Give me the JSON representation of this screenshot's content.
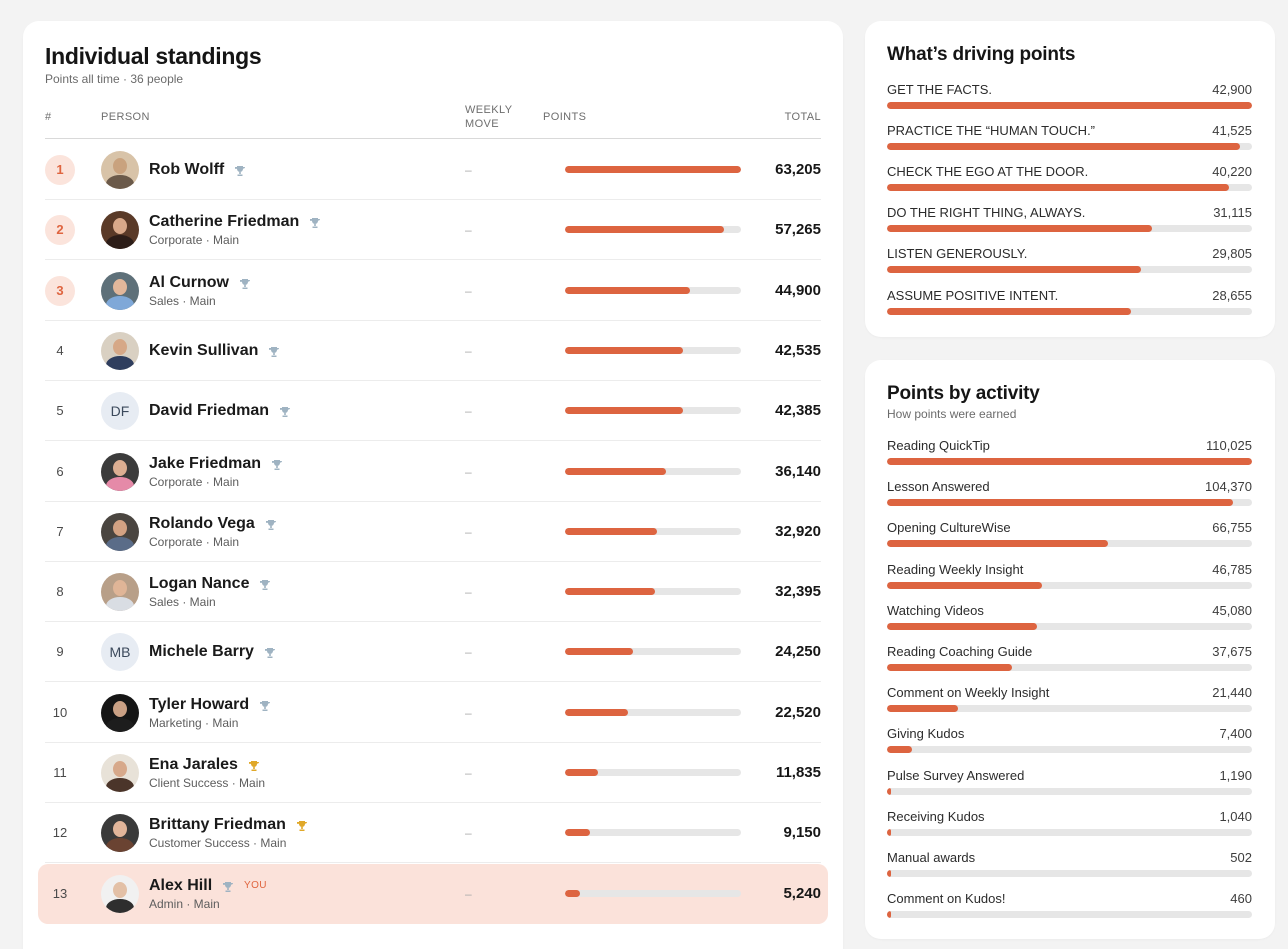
{
  "standings": {
    "title": "Individual standings",
    "subtitle": "Points all time · 36 people",
    "columns": {
      "rank": "#",
      "person": "PERSON",
      "move_line1": "WEEKLY",
      "move_line2": "MOVE",
      "points": "POINTS",
      "total": "TOTAL"
    },
    "max_total": 63205,
    "rows": [
      {
        "rank": "1",
        "name": "Rob Wolff",
        "team": "",
        "move": "–",
        "total": "63,205",
        "value": 63205,
        "trophy": "silver",
        "avatar": "photo",
        "skin": "#c9a27e",
        "shirt": "#6b5a4a",
        "bg": "#d8c3a8"
      },
      {
        "rank": "2",
        "name": "Catherine Friedman",
        "team": "Corporate · Main",
        "move": "–",
        "total": "57,265",
        "value": 57265,
        "trophy": "silver",
        "avatar": "photo",
        "skin": "#d9a98a",
        "shirt": "#2c1d18",
        "bg": "#5a3a28"
      },
      {
        "rank": "3",
        "name": "Al Curnow",
        "team": "Sales · Main",
        "move": "–",
        "total": "44,900",
        "value": 44900,
        "trophy": "silver",
        "avatar": "photo",
        "skin": "#e2b79b",
        "shirt": "#7fa8d8",
        "bg": "#5e7079"
      },
      {
        "rank": "4",
        "name": "Kevin Sullivan",
        "team": "",
        "move": "–",
        "total": "42,535",
        "value": 42535,
        "trophy": "silver",
        "avatar": "photo",
        "skin": "#d6a887",
        "shirt": "#2f3e5e",
        "bg": "#d9d0c2"
      },
      {
        "rank": "5",
        "name": "David Friedman",
        "team": "",
        "move": "–",
        "total": "42,385",
        "value": 42385,
        "trophy": "silver",
        "avatar": "initials",
        "initials": "DF"
      },
      {
        "rank": "6",
        "name": "Jake Friedman",
        "team": "Corporate · Main",
        "move": "–",
        "total": "36,140",
        "value": 36140,
        "trophy": "silver",
        "avatar": "photo",
        "skin": "#dcae92",
        "shirt": "#e58aa8",
        "bg": "#3b3b3b"
      },
      {
        "rank": "7",
        "name": "Rolando Vega",
        "team": "Corporate · Main",
        "move": "–",
        "total": "32,920",
        "value": 32920,
        "trophy": "silver",
        "avatar": "photo",
        "skin": "#d3a283",
        "shirt": "#5a6c88",
        "bg": "#4a4540"
      },
      {
        "rank": "8",
        "name": "Logan Nance",
        "team": "Sales · Main",
        "move": "–",
        "total": "32,395",
        "value": 32395,
        "trophy": "silver",
        "avatar": "photo",
        "skin": "#e0b597",
        "shirt": "#d9dde3",
        "bg": "#b89f88"
      },
      {
        "rank": "9",
        "name": "Michele Barry",
        "team": "",
        "move": "–",
        "total": "24,250",
        "value": 24250,
        "trophy": "silver",
        "avatar": "initials",
        "initials": "MB"
      },
      {
        "rank": "10",
        "name": "Tyler Howard",
        "team": "Marketing · Main",
        "move": "–",
        "total": "22,520",
        "value": 22520,
        "trophy": "silver",
        "avatar": "photo",
        "skin": "#caa084",
        "shirt": "#1d1d1d",
        "bg": "#151515"
      },
      {
        "rank": "11",
        "name": "Ena Jarales",
        "team": "Client Success · Main",
        "move": "–",
        "total": "11,835",
        "value": 11835,
        "trophy": "gold",
        "avatar": "photo",
        "skin": "#d7a98b",
        "shirt": "#4b352a",
        "bg": "#e8e2d8"
      },
      {
        "rank": "12",
        "name": "Brittany Friedman",
        "team": "Customer Success · Main",
        "move": "–",
        "total": "9,150",
        "value": 9150,
        "trophy": "gold",
        "avatar": "photo",
        "skin": "#e1b59a",
        "shirt": "#6a4332",
        "bg": "#3a3a3a"
      },
      {
        "rank": "13",
        "name": "Alex Hill",
        "team": "Admin · Main",
        "move": "–",
        "total": "5,240",
        "value": 5240,
        "trophy": "silver",
        "avatar": "photo",
        "skin": "#e3c0a6",
        "shirt": "#2e2e2e",
        "bg": "#f1f1f1",
        "you": "YOU"
      }
    ]
  },
  "driving": {
    "title": "What’s driving points",
    "max": 42900,
    "items": [
      {
        "label": "GET THE FACTS.",
        "value": "42,900",
        "num": 42900
      },
      {
        "label": "PRACTICE THE “HUMAN TOUCH.”",
        "value": "41,525",
        "num": 41525
      },
      {
        "label": "CHECK THE EGO AT THE DOOR.",
        "value": "40,220",
        "num": 40220
      },
      {
        "label": "DO THE RIGHT THING, ALWAYS.",
        "value": "31,115",
        "num": 31115
      },
      {
        "label": "LISTEN GENEROUSLY.",
        "value": "29,805",
        "num": 29805
      },
      {
        "label": "ASSUME POSITIVE INTENT.",
        "value": "28,655",
        "num": 28655
      }
    ]
  },
  "activity": {
    "title": "Points by activity",
    "subtitle": "How points were earned",
    "max": 110025,
    "items": [
      {
        "label": "Reading QuickTip",
        "value": "110,025",
        "num": 110025
      },
      {
        "label": "Lesson Answered",
        "value": "104,370",
        "num": 104370
      },
      {
        "label": "Opening CultureWise",
        "value": "66,755",
        "num": 66755
      },
      {
        "label": "Reading Weekly Insight",
        "value": "46,785",
        "num": 46785
      },
      {
        "label": "Watching Videos",
        "value": "45,080",
        "num": 45080
      },
      {
        "label": "Reading Coaching Guide",
        "value": "37,675",
        "num": 37675
      },
      {
        "label": "Comment on Weekly Insight",
        "value": "21,440",
        "num": 21440
      },
      {
        "label": "Giving Kudos",
        "value": "7,400",
        "num": 7400
      },
      {
        "label": "Pulse Survey Answered",
        "value": "1,190",
        "num": 1190
      },
      {
        "label": "Receiving Kudos",
        "value": "1,040",
        "num": 1040
      },
      {
        "label": "Manual awards",
        "value": "502",
        "num": 502
      },
      {
        "label": "Comment on Kudos!",
        "value": "460",
        "num": 460
      }
    ]
  },
  "colors": {
    "accent": "#dd6440",
    "track": "#e6e6e6",
    "trophy_silver": "#9fb3c2",
    "trophy_gold": "#e0a829",
    "highlight": "#fbe2da"
  }
}
